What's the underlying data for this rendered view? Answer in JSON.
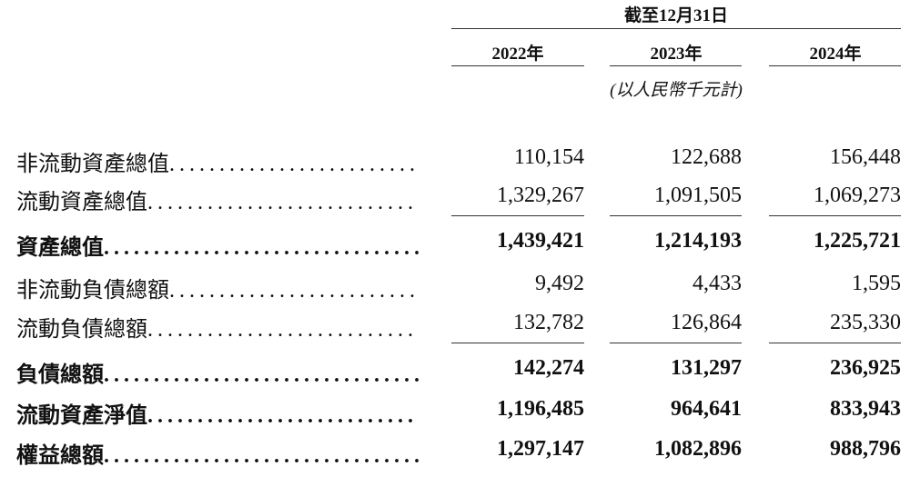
{
  "header": {
    "period": "截至12月31日",
    "years": [
      "2022年",
      "2023年",
      "2024年"
    ],
    "unit": "(以人民幣千元計)"
  },
  "rows": [
    {
      "label": "非流動資產總值",
      "values": [
        "110,154",
        "122,688",
        "156,448"
      ],
      "bold": false
    },
    {
      "label": "流動資產總值",
      "values": [
        "1,329,267",
        "1,091,505",
        "1,069,273"
      ],
      "bold": false
    },
    {
      "label": "資產總值",
      "values": [
        "1,439,421",
        "1,214,193",
        "1,225,721"
      ],
      "bold": true
    },
    {
      "label": "非流動負債總額",
      "values": [
        "9,492",
        "4,433",
        "1,595"
      ],
      "bold": false
    },
    {
      "label": "流動負債總額",
      "values": [
        "132,782",
        "126,864",
        "235,330"
      ],
      "bold": false
    },
    {
      "label": "負債總額",
      "values": [
        "142,274",
        "131,297",
        "236,925"
      ],
      "bold": true
    },
    {
      "label": "流動資產淨值",
      "values": [
        "1,196,485",
        "964,641",
        "833,943"
      ],
      "bold": true
    },
    {
      "label": "權益總額",
      "values": [
        "1,297,147",
        "1,082,896",
        "988,796"
      ],
      "bold": true
    }
  ]
}
